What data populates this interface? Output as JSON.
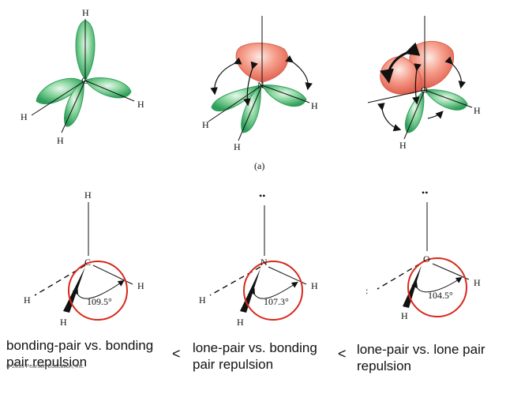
{
  "panel_label": "(a)",
  "atoms": {
    "h": "H",
    "c": "C",
    "n": "N",
    "o": "O",
    "lone_pair": "••"
  },
  "angles": {
    "methane": "109.5°",
    "ammonia": "107.3°",
    "water": "104.5°"
  },
  "captions": {
    "bonding_bonding": "bonding-pair vs. bonding pair repulsion",
    "lone_bonding": "lone-pair vs. bonding pair repulsion",
    "lone_lone": "lone-pair vs. lone pair repulsion"
  },
  "comparators": [
    "<",
    "<"
  ],
  "copyright": "© 2015 Pearson Education, Inc.",
  "colors": {
    "bond_orbital": "#3fb56b",
    "lone_pair_orbital": "#ef7a6a",
    "angle_circle": "#d8281c"
  }
}
